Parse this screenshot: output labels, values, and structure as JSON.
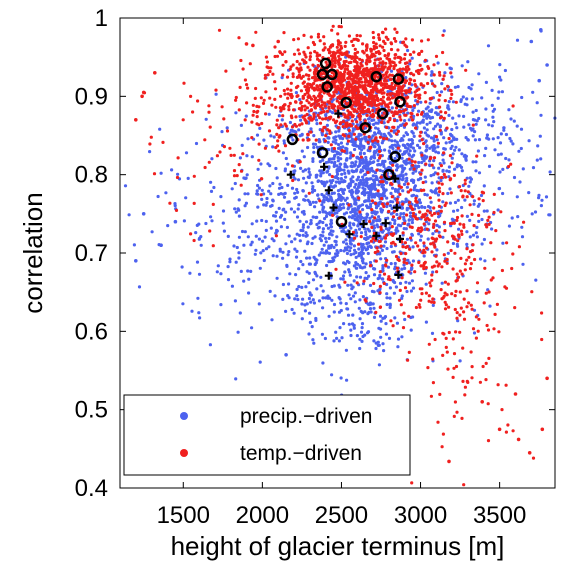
{
  "chart_data": {
    "type": "scatter",
    "xlabel": "height of glacier terminus [m]",
    "ylabel": "correlation",
    "xlim": [
      1100,
      3850
    ],
    "ylim": [
      0.4,
      1.0
    ],
    "xticks": [
      1500,
      2000,
      2500,
      3000,
      3500
    ],
    "yticks": [
      0.4,
      0.5,
      0.6,
      0.7,
      0.8,
      0.9,
      1.0
    ],
    "ytick_labels": [
      "0.4",
      "0.5",
      "0.6",
      "0.7",
      "0.8",
      "0.9",
      "1"
    ],
    "grid": false,
    "legend_position": "bottom-left",
    "series": [
      {
        "name": "precip.−driven",
        "color": "#4d62ef",
        "marker": "dot",
        "cloud": [
          {
            "cx": 2650,
            "cy": 0.78,
            "sx": 260,
            "sy": 0.065,
            "n": 1500
          },
          {
            "cx": 2900,
            "cy": 0.86,
            "sx": 300,
            "sy": 0.04,
            "n": 300
          },
          {
            "cx": 2200,
            "cy": 0.75,
            "sx": 350,
            "sy": 0.07,
            "n": 250
          },
          {
            "cx": 3300,
            "cy": 0.8,
            "sx": 250,
            "sy": 0.08,
            "n": 180
          },
          {
            "cx": 2600,
            "cy": 0.63,
            "sx": 200,
            "sy": 0.04,
            "n": 150
          },
          {
            "cx": 1700,
            "cy": 0.74,
            "sx": 300,
            "sy": 0.06,
            "n": 60
          },
          {
            "cx": 3600,
            "cy": 0.9,
            "sx": 150,
            "sy": 0.05,
            "n": 20
          }
        ],
        "points": [
          [
            1200,
            0.69
          ],
          [
            1250,
            0.75
          ],
          [
            1360,
            0.71
          ],
          [
            3760,
            0.985
          ],
          [
            3700,
            0.97
          ],
          [
            3750,
            0.92
          ],
          [
            2560,
            0.51
          ],
          [
            2150,
            0.57
          ],
          [
            1450,
            0.74
          ],
          [
            3800,
            0.94
          ]
        ]
      },
      {
        "name": "temp.−driven",
        "color": "#f0201f",
        "marker": "dot",
        "cloud": [
          {
            "cx": 2600,
            "cy": 0.915,
            "sx": 230,
            "sy": 0.03,
            "n": 1300
          },
          {
            "cx": 3000,
            "cy": 0.73,
            "sx": 230,
            "sy": 0.06,
            "n": 350
          },
          {
            "cx": 2100,
            "cy": 0.87,
            "sx": 250,
            "sy": 0.04,
            "n": 120
          },
          {
            "cx": 3300,
            "cy": 0.6,
            "sx": 220,
            "sy": 0.08,
            "n": 120
          },
          {
            "cx": 1600,
            "cy": 0.83,
            "sx": 250,
            "sy": 0.06,
            "n": 40
          }
        ],
        "points": [
          [
            1200,
            0.87
          ],
          [
            1240,
            0.9
          ],
          [
            1250,
            0.905
          ],
          [
            1320,
            0.93
          ],
          [
            1900,
            0.967
          ],
          [
            1940,
            0.965
          ],
          [
            3620,
            0.462
          ],
          [
            3690,
            0.445
          ],
          [
            3800,
            0.54
          ],
          [
            3770,
            0.475
          ],
          [
            3180,
            0.434
          ],
          [
            3390,
            0.51
          ],
          [
            3500,
            0.475
          ],
          [
            3600,
            0.52
          ],
          [
            2100,
            0.97
          ]
        ]
      },
      {
        "marker": "circle",
        "color": "#000000",
        "points": [
          [
            2400,
            0.942
          ],
          [
            2380,
            0.928
          ],
          [
            2440,
            0.928
          ],
          [
            2410,
            0.912
          ],
          [
            2720,
            0.925
          ],
          [
            2860,
            0.922
          ],
          [
            2530,
            0.892
          ],
          [
            2870,
            0.893
          ],
          [
            2760,
            0.878
          ],
          [
            2650,
            0.86
          ],
          [
            2190,
            0.845
          ],
          [
            2380,
            0.828
          ],
          [
            2840,
            0.823
          ],
          [
            2800,
            0.8
          ],
          [
            2500,
            0.74
          ]
        ]
      },
      {
        "marker": "plus",
        "color": "#000000",
        "points": [
          [
            2480,
            0.878
          ],
          [
            2390,
            0.81
          ],
          [
            2180,
            0.8
          ],
          [
            2420,
            0.78
          ],
          [
            2840,
            0.795
          ],
          [
            2450,
            0.758
          ],
          [
            2850,
            0.758
          ],
          [
            2640,
            0.737
          ],
          [
            2780,
            0.738
          ],
          [
            2550,
            0.724
          ],
          [
            2720,
            0.722
          ],
          [
            2870,
            0.718
          ],
          [
            2420,
            0.671
          ],
          [
            2860,
            0.672
          ]
        ]
      }
    ]
  }
}
